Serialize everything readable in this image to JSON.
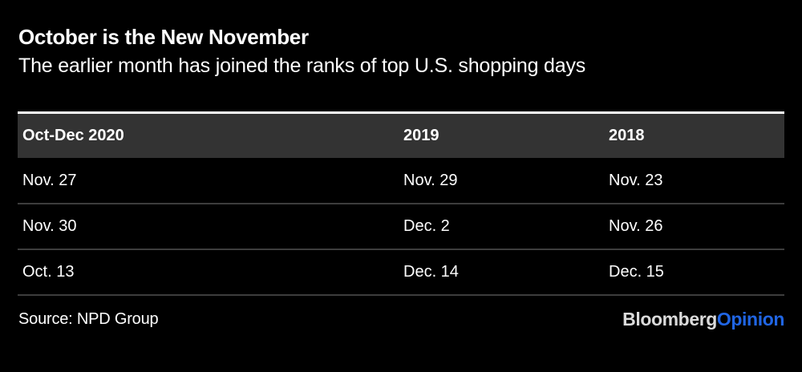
{
  "meta": {
    "background_color": "#000000",
    "header_band_color": "#333333",
    "divider_color": "#3d3d3d",
    "top_rule_color": "#ffffff",
    "brand_blue": "#2065e4"
  },
  "header": {
    "title": "October is the New November",
    "subtitle": "The earlier month has joined the ranks of top U.S. shopping days"
  },
  "table": {
    "columns": [
      "Oct-Dec 2020",
      "2019",
      "2018"
    ],
    "rows": [
      [
        "Nov. 27",
        "Nov. 29",
        "Nov. 23"
      ],
      [
        "Nov. 30",
        "Dec. 2",
        "Nov. 26"
      ],
      [
        "Oct. 13",
        "Dec. 14",
        "Dec. 15"
      ]
    ]
  },
  "footer": {
    "source": "Source: NPD Group",
    "brand": {
      "main": "Bloomberg",
      "suffix": "Opinion"
    }
  },
  "chart_data": {
    "type": "table",
    "title": "October is the New November",
    "subtitle": "The earlier month has joined the ranks of top U.S. shopping days",
    "columns": [
      "Oct-Dec 2020",
      "2019",
      "2018"
    ],
    "rows": [
      [
        "Nov. 27",
        "Nov. 29",
        "Nov. 23"
      ],
      [
        "Nov. 30",
        "Dec. 2",
        "Nov. 26"
      ],
      [
        "Oct. 13",
        "Dec. 14",
        "Dec. 15"
      ]
    ],
    "source": "Source: NPD Group",
    "notes": "Top U.S. shopping days per period; header band dark gray, black background Bloomberg Opinion style"
  }
}
